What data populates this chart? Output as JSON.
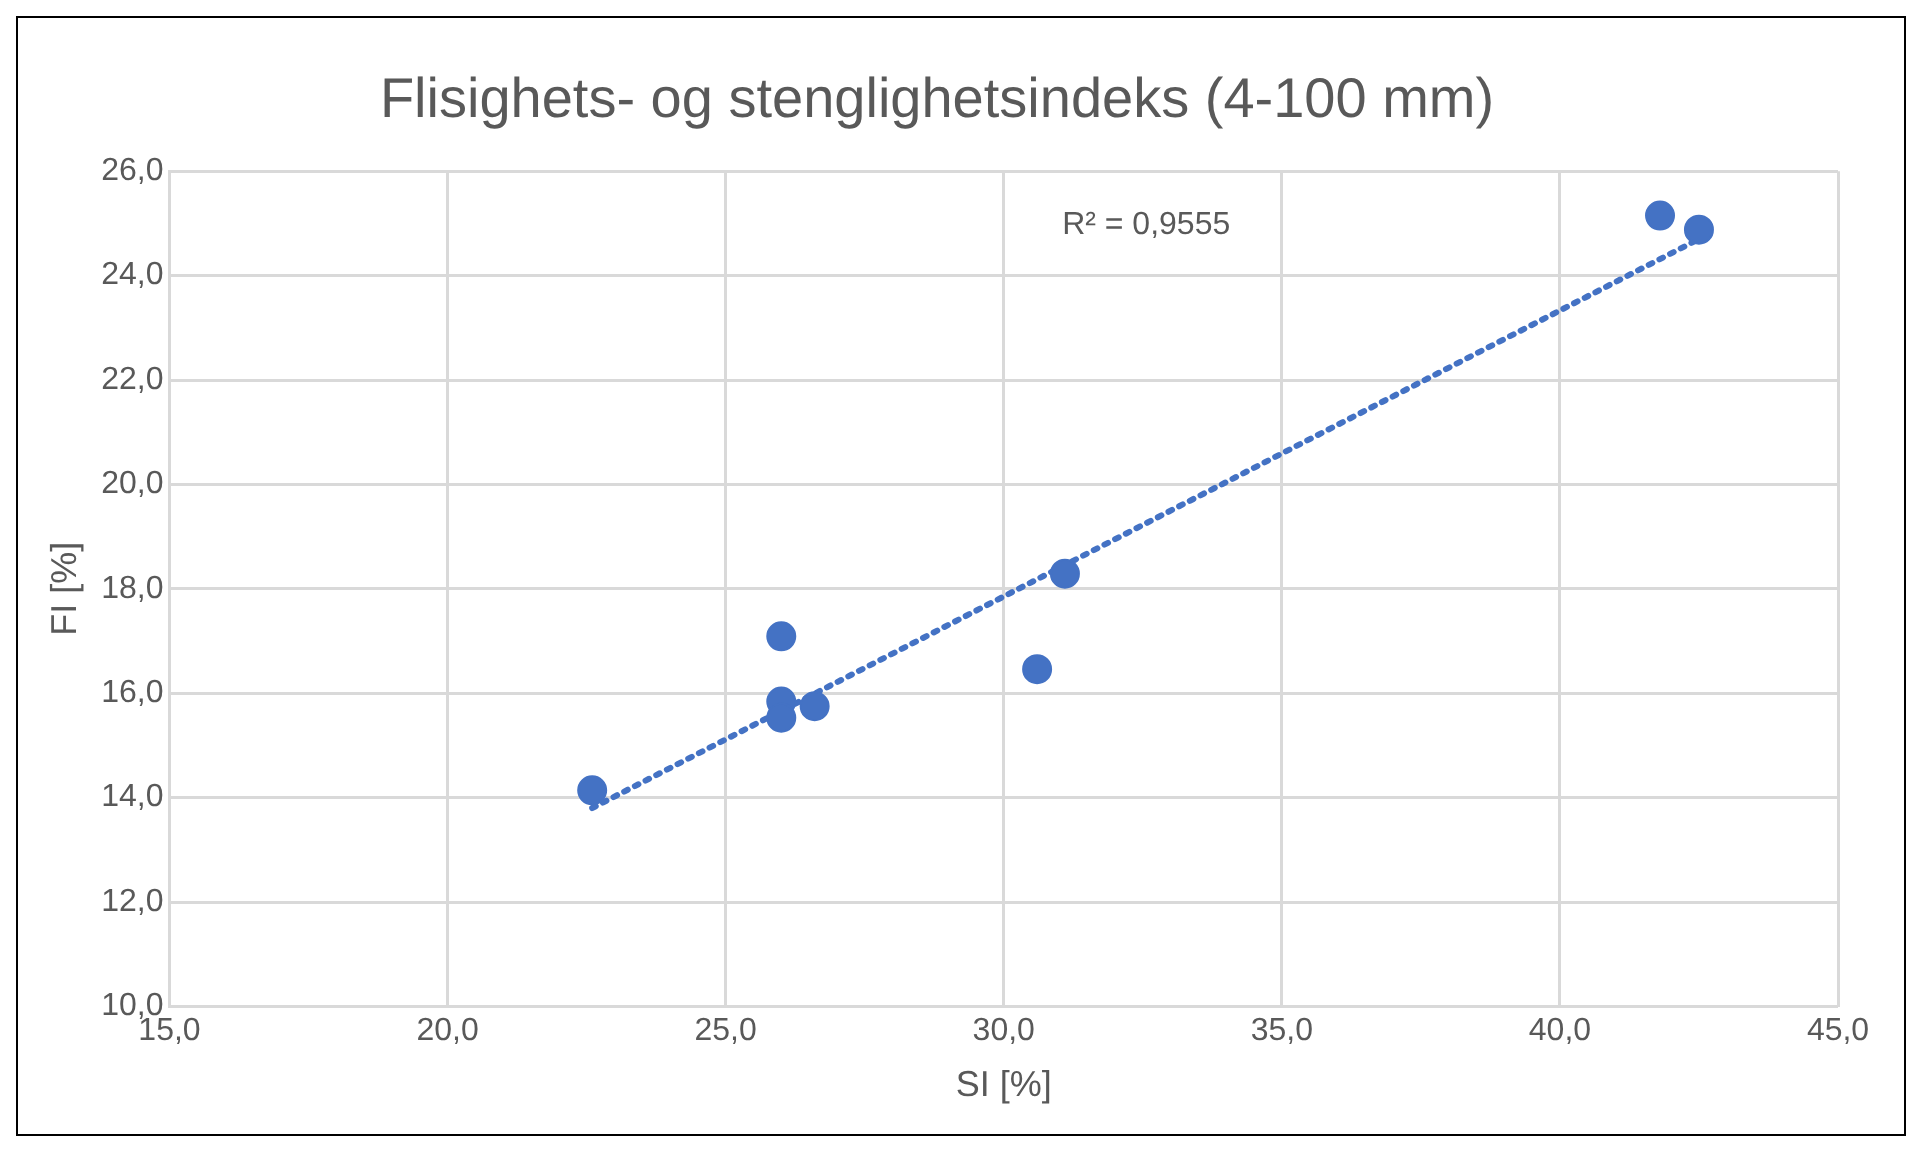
{
  "chart_data": {
    "type": "scatter",
    "title": "Flisighets- og stenglighetsindeks (4-100 mm)",
    "xlabel": "SI [%]",
    "ylabel": "FI [%]",
    "series": [
      {
        "color": "#4472c4",
        "marker": "circle",
        "x": [
          22.6,
          26.0,
          26.0,
          26.0,
          26.6,
          30.6,
          31.1,
          41.8,
          42.5
        ],
        "values": [
          14.14,
          17.09,
          15.84,
          15.53,
          15.75,
          16.46,
          18.29,
          25.15,
          24.88
        ]
      },
      {
        "type": "line",
        "color": "#4472c4",
        "marker": "none",
        "line_style": "dotted",
        "x": [
          22.6,
          42.5
        ],
        "values": [
          13.8,
          24.7
        ]
      }
    ],
    "annotations": [
      "R² = 0,9555"
    ],
    "xlim": [
      15,
      45
    ],
    "xticks": [
      {
        "value": 15,
        "label": "15,0"
      },
      {
        "value": 20,
        "label": "20,0"
      },
      {
        "value": 25,
        "label": "25,0"
      },
      {
        "value": 30,
        "label": "30,0"
      },
      {
        "value": 35,
        "label": "35,0"
      },
      {
        "value": 40,
        "label": "40,0"
      },
      {
        "value": 45,
        "label": "45,0"
      }
    ],
    "ylim": [
      10,
      26
    ],
    "yticks": [
      {
        "value": 10,
        "label": "10,0"
      },
      {
        "value": 12,
        "label": "12,0"
      },
      {
        "value": 14,
        "label": "14,0"
      },
      {
        "value": 16,
        "label": "16,0"
      },
      {
        "value": 18,
        "label": "18,0"
      },
      {
        "value": 20,
        "label": "20,0"
      },
      {
        "value": 22,
        "label": "22,0"
      },
      {
        "value": 24,
        "label": "24,0"
      },
      {
        "value": 26,
        "label": "26,0"
      }
    ],
    "grid": true,
    "legend": false
  }
}
